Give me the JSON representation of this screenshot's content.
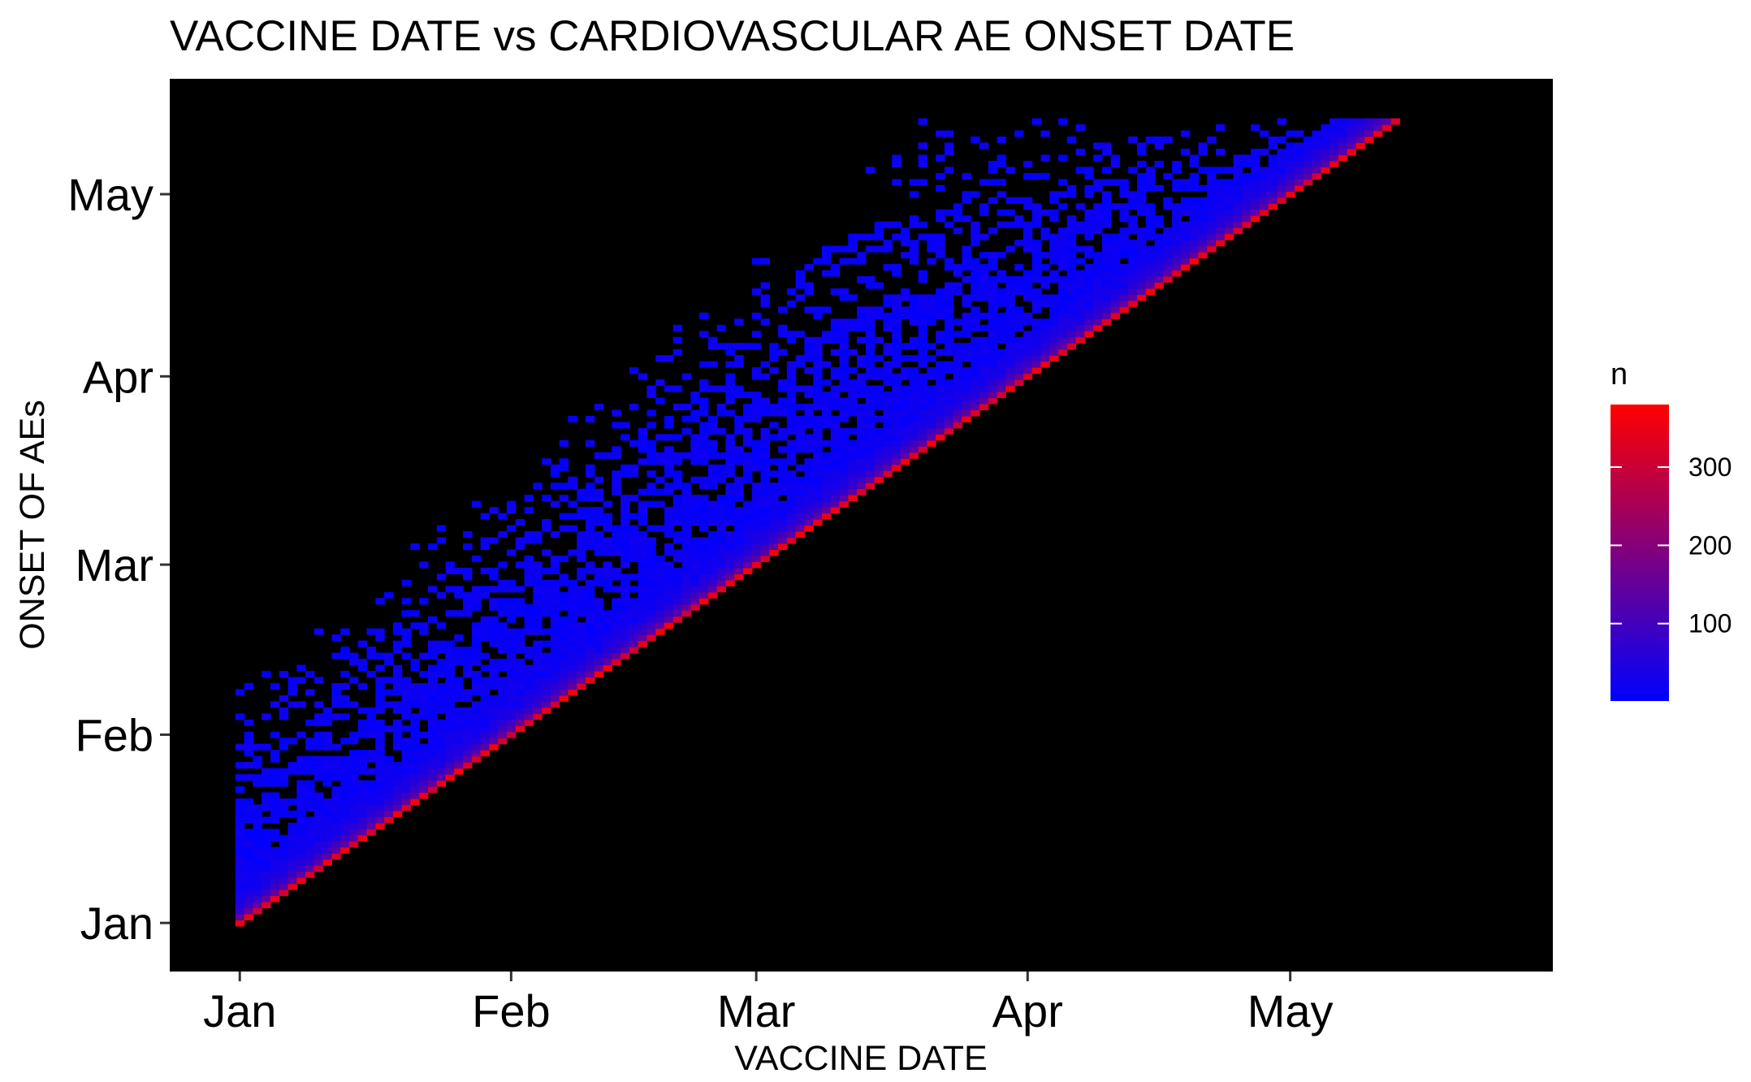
{
  "chart_data": {
    "type": "heatmap",
    "title": "VACCINE DATE vs CARDIOVASCULAR AE ONSET DATE",
    "xlabel": "VACCINE DATE",
    "ylabel": "ONSET OF AEs",
    "x_ticks": [
      {
        "label": "Jan",
        "date": "2021-01-01"
      },
      {
        "label": "Feb",
        "date": "2021-02-01"
      },
      {
        "label": "Mar",
        "date": "2021-03-01"
      },
      {
        "label": "Apr",
        "date": "2021-04-01"
      },
      {
        "label": "May",
        "date": "2021-05-01"
      }
    ],
    "y_ticks": [
      {
        "label": "Jan",
        "date": "2021-01-01"
      },
      {
        "label": "Feb",
        "date": "2021-02-01"
      },
      {
        "label": "Mar",
        "date": "2021-03-01"
      },
      {
        "label": "Apr",
        "date": "2021-04-01"
      },
      {
        "label": "May",
        "date": "2021-05-01"
      }
    ],
    "x_range": [
      "2020-12-24",
      "2021-05-31"
    ],
    "y_range": [
      "2020-12-24",
      "2021-05-20"
    ],
    "data_extent": {
      "x": [
        "2021-01-01",
        "2021-05-13"
      ],
      "y": [
        "2021-01-01",
        "2021-05-13"
      ]
    },
    "cell_days": 1,
    "background_color": "#000000",
    "grid": false,
    "legend": {
      "title": "n",
      "placement": "right",
      "min": 1,
      "max": 380,
      "ticks": [
        100,
        200,
        300
      ],
      "tick_labels": [
        "100",
        "200",
        "300"
      ],
      "low_color": "#0000ff",
      "high_color": "#ff0000"
    }
  }
}
